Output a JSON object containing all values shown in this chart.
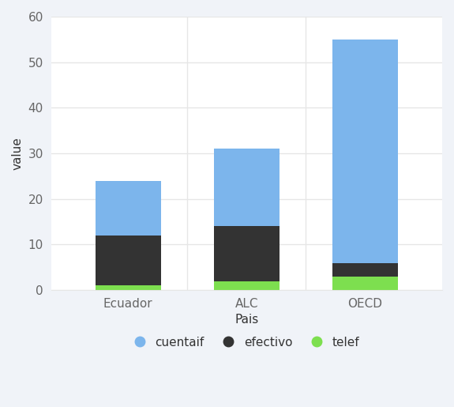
{
  "categories": [
    "Ecuador",
    "ALC",
    "OECD"
  ],
  "xlabel": "Pais",
  "ylabel": "value",
  "ylim": [
    0,
    60
  ],
  "yticks": [
    0,
    10,
    20,
    30,
    40,
    50,
    60
  ],
  "series": {
    "telef": {
      "values": [
        1.0,
        2.0,
        3.0
      ],
      "color": "#7ddf4f",
      "label": "telef"
    },
    "efectivo": {
      "values": [
        11.0,
        12.0,
        3.0
      ],
      "color": "#333333",
      "label": "efectivo"
    },
    "cuentaif": {
      "values": [
        12.0,
        17.0,
        49.0
      ],
      "color": "#7cb5ec",
      "label": "cuentaif"
    }
  },
  "series_order": [
    "telef",
    "efectivo",
    "cuentaif"
  ],
  "legend_order": [
    "cuentaif",
    "efectivo",
    "telef"
  ],
  "background_color": "#f0f3f8",
  "plot_bg_color": "#ffffff",
  "grid_color": "#e6e6e6",
  "bar_width": 0.55,
  "axis_fontsize": 11,
  "tick_fontsize": 11,
  "legend_fontsize": 11,
  "tick_color": "#666666",
  "label_color": "#333333"
}
